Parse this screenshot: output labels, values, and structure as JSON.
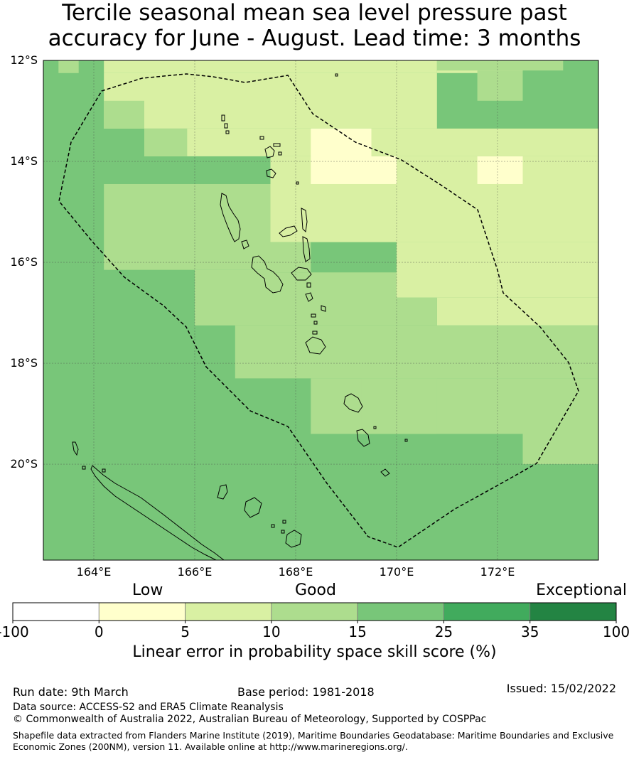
{
  "title": {
    "line1": "Tercile seasonal mean sea level pressure past",
    "line2": "accuracy for June - August. Lead time: 3 months"
  },
  "map": {
    "extent": {
      "lon_min": 163,
      "lon_max": 174,
      "lat_min": -21.9,
      "lat_max": -12
    },
    "lat_ticks": [
      {
        "value": -12,
        "label": "12°S"
      },
      {
        "value": -14,
        "label": "14°S"
      },
      {
        "value": -16,
        "label": "16°S"
      },
      {
        "value": -18,
        "label": "18°S"
      },
      {
        "value": -20,
        "label": "20°S"
      }
    ],
    "lon_ticks": [
      {
        "value": 164,
        "label": "164°E"
      },
      {
        "value": 166,
        "label": "166°E"
      },
      {
        "value": 168,
        "label": "168°E"
      },
      {
        "value": 170,
        "label": "170°E"
      },
      {
        "value": 172,
        "label": "172°E"
      }
    ],
    "base_category": 4,
    "skill_regions": [
      {
        "category": 3,
        "lon": [
          163.3,
          163.7
        ],
        "lat": [
          -12.25,
          -12.0
        ]
      },
      {
        "category": 2,
        "lon": [
          164.2,
          170.8
        ],
        "lat": [
          -12.25,
          -12.0
        ]
      },
      {
        "category": 2,
        "lon": [
          170.8,
          172.5
        ],
        "lat": [
          -12.25,
          -12.0
        ]
      },
      {
        "category": 3,
        "lon": [
          170.8,
          173.3
        ],
        "lat": [
          -12.2,
          -12.0
        ]
      },
      {
        "category": 3,
        "lon": [
          171.6,
          172.5
        ],
        "lat": [
          -12.8,
          -12.2
        ]
      },
      {
        "category": 2,
        "lon": [
          164.2,
          170.8
        ],
        "lat": [
          -13.35,
          -12.25
        ]
      },
      {
        "category": 3,
        "lon": [
          164.2,
          165.0
        ],
        "lat": [
          -13.35,
          -12.8
        ]
      },
      {
        "category": 2,
        "lon": [
          165.0,
          174.0
        ],
        "lat": [
          -13.9,
          -13.35
        ]
      },
      {
        "category": 3,
        "lon": [
          165.0,
          165.85
        ],
        "lat": [
          -13.9,
          -13.35
        ]
      },
      {
        "category": 2,
        "lon": [
          167.5,
          174.0
        ],
        "lat": [
          -15.6,
          -13.9
        ]
      },
      {
        "category": 1,
        "lon": [
          168.3,
          169.5
        ],
        "lat": [
          -14.45,
          -13.35
        ]
      },
      {
        "category": 1,
        "lon": [
          169.5,
          170.0
        ],
        "lat": [
          -14.45,
          -13.9
        ]
      },
      {
        "category": 1,
        "lon": [
          171.6,
          172.5
        ],
        "lat": [
          -14.45,
          -13.9
        ]
      },
      {
        "category": 3,
        "lon": [
          164.2,
          167.5
        ],
        "lat": [
          -16.15,
          -14.45
        ]
      },
      {
        "category": 3,
        "lon": [
          166.0,
          167.5
        ],
        "lat": [
          -17.25,
          -16.15
        ]
      },
      {
        "category": 3,
        "lon": [
          167.5,
          168.3
        ],
        "lat": [
          -16.2,
          -15.6
        ]
      },
      {
        "category": 3,
        "lon": [
          167.5,
          170.0
        ],
        "lat": [
          -17.25,
          -16.2
        ]
      },
      {
        "category": 2,
        "lon": [
          170.0,
          174.0
        ],
        "lat": [
          -16.7,
          -15.6
        ]
      },
      {
        "category": 2,
        "lon": [
          170.8,
          174.0
        ],
        "lat": [
          -17.25,
          -16.7
        ]
      },
      {
        "category": 3,
        "lon": [
          170.0,
          170.8
        ],
        "lat": [
          -17.25,
          -16.7
        ]
      },
      {
        "category": 3,
        "lon": [
          166.8,
          174.0
        ],
        "lat": [
          -18.3,
          -17.25
        ]
      },
      {
        "category": 3,
        "lon": [
          168.3,
          174.0
        ],
        "lat": [
          -19.4,
          -18.3
        ]
      },
      {
        "category": 3,
        "lon": [
          169.3,
          170.8
        ],
        "lat": [
          -19.4,
          -18.3
        ]
      },
      {
        "category": 3,
        "lon": [
          172.5,
          174.0
        ],
        "lat": [
          -20.0,
          -19.4
        ]
      }
    ]
  },
  "legend": {
    "category_labels": {
      "low": "Low",
      "good": "Good",
      "exceptional": "Exceptional"
    },
    "boundaries": [
      "-100",
      "0",
      "5",
      "10",
      "15",
      "25",
      "35",
      "100"
    ],
    "colors": [
      "#ffffff",
      "#ffffcc",
      "#d9f0a3",
      "#addd8e",
      "#78c679",
      "#41ab5d",
      "#238443"
    ],
    "title": "Linear error in probability space skill score (%)"
  },
  "footer": {
    "run_date": "Run date: 9th March",
    "base_period": "Base period: 1981-2018",
    "issued": "Issued: 15/02/2022",
    "data_source": "Data source: ACCESS-S2 and ERA5 Climate Reanalysis",
    "copyright": "© Commonwealth of Australia 2022, Australian Bureau of Meteorology, Supported by COSPPac",
    "shapefile": "Shapefile data extracted from Flanders Marine Institute (2019), Maritime Boundaries Geodatabase: Maritime Boundaries and Exclusive Economic Zones (200NM), version 11. Available online at http://www.marineregions.org/."
  }
}
